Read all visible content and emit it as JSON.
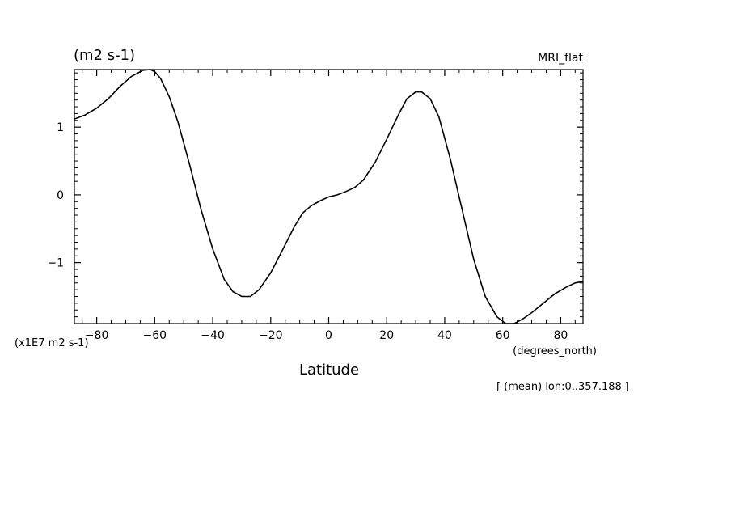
{
  "chart_data": {
    "type": "line",
    "title": "(m2 s-1)",
    "subtitle": "MRI_flat",
    "xlabel": "Latitude",
    "x_units": "(degrees_north)",
    "y_scale_note": "(x1E7 m2 s-1)",
    "annotation": "[ (mean) lon:0..357.188 ]",
    "xlim": [
      -87.7,
      87.7
    ],
    "ylim": [
      -1.9,
      1.85
    ],
    "x_ticks": [
      -80,
      -60,
      -40,
      -20,
      0,
      20,
      40,
      60,
      80
    ],
    "x_tick_labels": [
      "−80",
      "−60",
      "−40",
      "−20",
      "0",
      "20",
      "40",
      "60",
      "80"
    ],
    "y_ticks": [
      -1,
      0,
      1
    ],
    "y_tick_labels": [
      "−1",
      "0",
      "1"
    ],
    "grid": false,
    "series": [
      {
        "x": [
          -87.7,
          -84,
          -80,
          -76,
          -72,
          -68,
          -64,
          -61.5,
          -60,
          -58,
          -55,
          -52,
          -48,
          -44,
          -40,
          -36,
          -33,
          -30,
          -27,
          -24,
          -20,
          -16,
          -12,
          -9,
          -6,
          -3,
          0,
          3,
          6,
          9,
          12,
          16,
          20,
          24,
          27,
          30,
          32,
          35,
          38,
          42,
          46,
          50,
          54,
          58,
          61,
          64,
          67,
          70,
          74,
          78,
          82,
          85,
          87.7
        ],
        "y": [
          1.12,
          1.18,
          1.28,
          1.42,
          1.6,
          1.75,
          1.84,
          1.85,
          1.82,
          1.72,
          1.45,
          1.08,
          0.45,
          -0.22,
          -0.8,
          -1.25,
          -1.43,
          -1.5,
          -1.5,
          -1.4,
          -1.15,
          -0.82,
          -0.48,
          -0.27,
          -0.16,
          -0.09,
          -0.03,
          0.0,
          0.05,
          0.11,
          0.22,
          0.48,
          0.82,
          1.18,
          1.42,
          1.52,
          1.52,
          1.42,
          1.15,
          0.52,
          -0.22,
          -0.95,
          -1.5,
          -1.8,
          -1.9,
          -1.9,
          -1.83,
          -1.74,
          -1.6,
          -1.46,
          -1.36,
          -1.3,
          -1.28
        ]
      }
    ]
  }
}
